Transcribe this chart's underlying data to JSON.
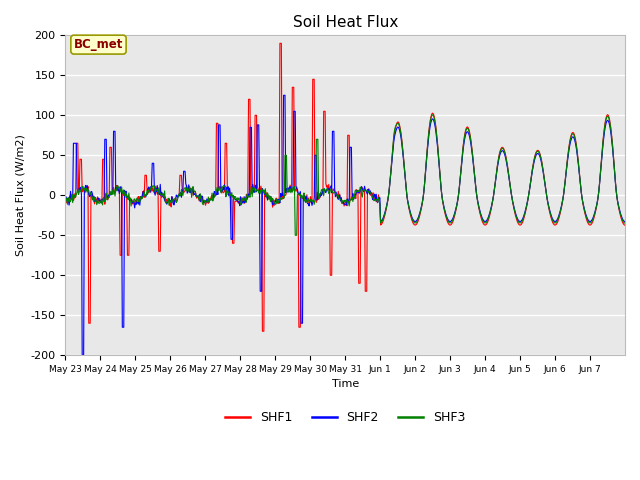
{
  "title": "Soil Heat Flux",
  "ylabel": "Soil Heat Flux (W/m2)",
  "xlabel": "Time",
  "ylim": [
    -200,
    200
  ],
  "bg_color": "#e8e8e8",
  "annotation_text": "BC_met",
  "annotation_color": "#8b0000",
  "annotation_bg": "#ffffcc",
  "legend_labels": [
    "SHF1",
    "SHF2",
    "SHF3"
  ],
  "line_colors": [
    "red",
    "blue",
    "green"
  ],
  "xtick_labels": [
    "May 23",
    "May 24",
    "May 25",
    "May 26",
    "May 27",
    "May 28",
    "May 29",
    "May 30",
    "May 31",
    "Jun 1",
    "Jun 2",
    "Jun 3",
    "Jun 4",
    "Jun 5",
    "Jun 6",
    "Jun 7"
  ],
  "ytick_values": [
    -200,
    -150,
    -100,
    -50,
    0,
    50,
    100,
    150,
    200
  ],
  "figsize": [
    6.4,
    4.8
  ],
  "dpi": 100
}
